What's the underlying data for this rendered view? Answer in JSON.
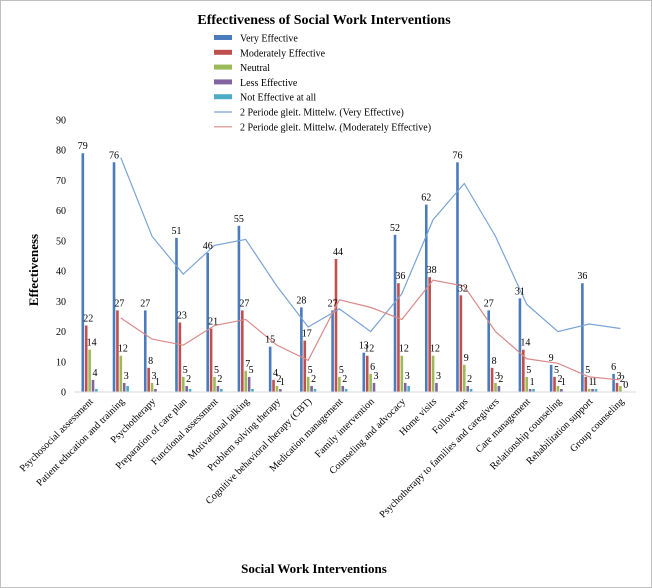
{
  "chart_data": {
    "type": "bar",
    "title": "Effectiveness of Social Work Interventions",
    "xlabel": "Social Work Interventions",
    "ylabel": "Effectiveness",
    "ylim": [
      0,
      90
    ],
    "yticks": [
      0,
      10,
      20,
      30,
      40,
      50,
      60,
      70,
      80,
      90
    ],
    "grid": false,
    "legend_position": "top-right",
    "categories": [
      "Psychosocial assessment",
      "Patient education and training",
      "Psychotherapy",
      "Preparation of care plan",
      "Functional assessment",
      "Motivational talking",
      "Problem solving therapy",
      "Cognitive behavioral therapy (CBT)",
      "Medication management",
      "Family intervention",
      "Counseling and advocacy",
      "Home visits",
      "Follow-ups",
      "Psychotherapy to families and caregivers",
      "Care management",
      "Relationship counseling",
      "Rehabilitation support",
      "Group counseling"
    ],
    "series": [
      {
        "name": "Very Effective",
        "color": "#4a7bbd",
        "values": [
          79,
          76,
          27,
          51,
          46,
          55,
          15,
          28,
          27,
          13,
          52,
          62,
          76,
          27,
          31,
          9,
          36,
          6
        ]
      },
      {
        "name": "Moderately Effective",
        "color": "#c0504d",
        "values": [
          22,
          27,
          8,
          23,
          21,
          27,
          4,
          17,
          44,
          12,
          36,
          38,
          32,
          8,
          14,
          5,
          5,
          3
        ]
      },
      {
        "name": "Neutral",
        "color": "#9bbb59",
        "values": [
          14,
          12,
          3,
          5,
          5,
          7,
          2,
          5,
          5,
          6,
          12,
          12,
          9,
          3,
          5,
          2,
          1,
          2
        ]
      },
      {
        "name": "Less Effective",
        "color": "#8064a2",
        "values": [
          4,
          3,
          1,
          2,
          2,
          5,
          1,
          2,
          2,
          3,
          3,
          3,
          2,
          2,
          1,
          1,
          1,
          0
        ]
      },
      {
        "name": "Not Effective at all",
        "color": "#4bacc6",
        "values": [
          1,
          2,
          0,
          1,
          1,
          1,
          0,
          1,
          1,
          0,
          2,
          0,
          1,
          0,
          1,
          0,
          1,
          0
        ]
      }
    ],
    "trendlines": [
      {
        "name": "2 Periode gleit. Mittelw. (Very Effective)",
        "color": "#7aa3d6",
        "of_series": 0,
        "period": 2
      },
      {
        "name": "2 Periode gleit. Mittelw. (Moderately Effective)",
        "color": "#d98a88",
        "of_series": 1,
        "period": 2
      }
    ]
  }
}
